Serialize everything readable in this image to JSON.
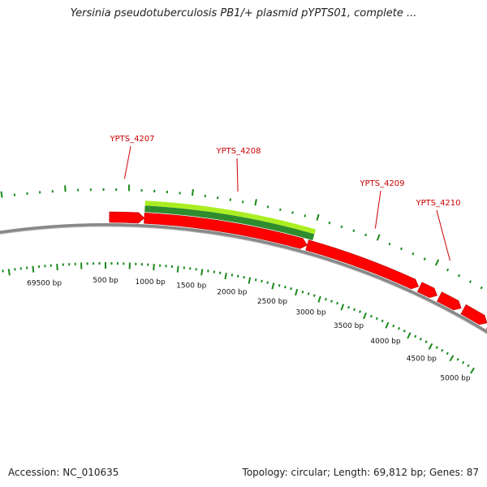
{
  "title": "Yersinia pseudotuberculosis PB1/+ plasmid pYPTS01, complete ...",
  "footer": {
    "accession": "Accession: NC_010635",
    "summary": "Topology: circular; Length: 69,812 bp; Genes: 87"
  },
  "colors": {
    "gene_forward": "#ff0000",
    "feature_light": "#aaee22",
    "feature_dark": "#2e8b2e",
    "backbone": "#888888",
    "ticks": "#1a8a1a",
    "gene_label": "#cc0000"
  },
  "scale_labels": [
    "69500 bp",
    "500 bp",
    "1000 bp",
    "1500 bp",
    "2000 bp",
    "2500 bp",
    "3000 bp",
    "3500 bp",
    "4000 bp",
    "4500 bp",
    "5000 bp"
  ],
  "gene_labels": [
    "YPTS_4207",
    "YPTS_4208",
    "YPTS_4209",
    "YPTS_4210"
  ]
}
